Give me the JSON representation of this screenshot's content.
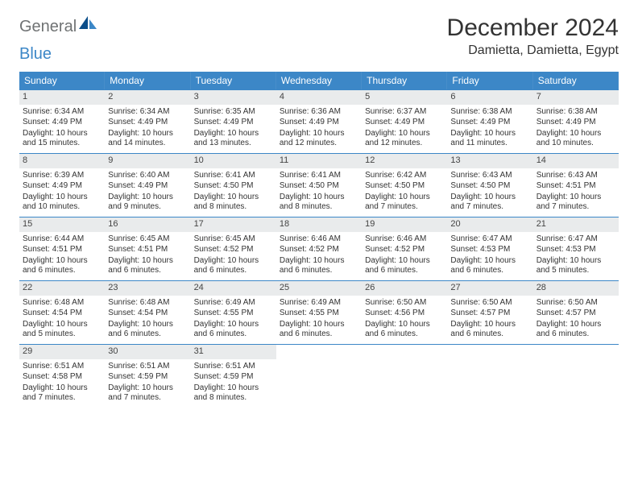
{
  "logo": {
    "part1": "General",
    "part2": "Blue"
  },
  "title": "December 2024",
  "location": "Damietta, Damietta, Egypt",
  "colors": {
    "header_bg": "#3c87c7",
    "header_text": "#ffffff",
    "daynum_bg": "#e9ebec",
    "week_border": "#3c87c7",
    "body_text": "#333333",
    "logo_gray": "#6f7273",
    "logo_blue": "#3c87c7"
  },
  "weekdays": [
    "Sunday",
    "Monday",
    "Tuesday",
    "Wednesday",
    "Thursday",
    "Friday",
    "Saturday"
  ],
  "weeks": [
    [
      {
        "n": "1",
        "sr": "Sunrise: 6:34 AM",
        "ss": "Sunset: 4:49 PM",
        "dl": "Daylight: 10 hours and 15 minutes."
      },
      {
        "n": "2",
        "sr": "Sunrise: 6:34 AM",
        "ss": "Sunset: 4:49 PM",
        "dl": "Daylight: 10 hours and 14 minutes."
      },
      {
        "n": "3",
        "sr": "Sunrise: 6:35 AM",
        "ss": "Sunset: 4:49 PM",
        "dl": "Daylight: 10 hours and 13 minutes."
      },
      {
        "n": "4",
        "sr": "Sunrise: 6:36 AM",
        "ss": "Sunset: 4:49 PM",
        "dl": "Daylight: 10 hours and 12 minutes."
      },
      {
        "n": "5",
        "sr": "Sunrise: 6:37 AM",
        "ss": "Sunset: 4:49 PM",
        "dl": "Daylight: 10 hours and 12 minutes."
      },
      {
        "n": "6",
        "sr": "Sunrise: 6:38 AM",
        "ss": "Sunset: 4:49 PM",
        "dl": "Daylight: 10 hours and 11 minutes."
      },
      {
        "n": "7",
        "sr": "Sunrise: 6:38 AM",
        "ss": "Sunset: 4:49 PM",
        "dl": "Daylight: 10 hours and 10 minutes."
      }
    ],
    [
      {
        "n": "8",
        "sr": "Sunrise: 6:39 AM",
        "ss": "Sunset: 4:49 PM",
        "dl": "Daylight: 10 hours and 10 minutes."
      },
      {
        "n": "9",
        "sr": "Sunrise: 6:40 AM",
        "ss": "Sunset: 4:49 PM",
        "dl": "Daylight: 10 hours and 9 minutes."
      },
      {
        "n": "10",
        "sr": "Sunrise: 6:41 AM",
        "ss": "Sunset: 4:50 PM",
        "dl": "Daylight: 10 hours and 8 minutes."
      },
      {
        "n": "11",
        "sr": "Sunrise: 6:41 AM",
        "ss": "Sunset: 4:50 PM",
        "dl": "Daylight: 10 hours and 8 minutes."
      },
      {
        "n": "12",
        "sr": "Sunrise: 6:42 AM",
        "ss": "Sunset: 4:50 PM",
        "dl": "Daylight: 10 hours and 7 minutes."
      },
      {
        "n": "13",
        "sr": "Sunrise: 6:43 AM",
        "ss": "Sunset: 4:50 PM",
        "dl": "Daylight: 10 hours and 7 minutes."
      },
      {
        "n": "14",
        "sr": "Sunrise: 6:43 AM",
        "ss": "Sunset: 4:51 PM",
        "dl": "Daylight: 10 hours and 7 minutes."
      }
    ],
    [
      {
        "n": "15",
        "sr": "Sunrise: 6:44 AM",
        "ss": "Sunset: 4:51 PM",
        "dl": "Daylight: 10 hours and 6 minutes."
      },
      {
        "n": "16",
        "sr": "Sunrise: 6:45 AM",
        "ss": "Sunset: 4:51 PM",
        "dl": "Daylight: 10 hours and 6 minutes."
      },
      {
        "n": "17",
        "sr": "Sunrise: 6:45 AM",
        "ss": "Sunset: 4:52 PM",
        "dl": "Daylight: 10 hours and 6 minutes."
      },
      {
        "n": "18",
        "sr": "Sunrise: 6:46 AM",
        "ss": "Sunset: 4:52 PM",
        "dl": "Daylight: 10 hours and 6 minutes."
      },
      {
        "n": "19",
        "sr": "Sunrise: 6:46 AM",
        "ss": "Sunset: 4:52 PM",
        "dl": "Daylight: 10 hours and 6 minutes."
      },
      {
        "n": "20",
        "sr": "Sunrise: 6:47 AM",
        "ss": "Sunset: 4:53 PM",
        "dl": "Daylight: 10 hours and 6 minutes."
      },
      {
        "n": "21",
        "sr": "Sunrise: 6:47 AM",
        "ss": "Sunset: 4:53 PM",
        "dl": "Daylight: 10 hours and 5 minutes."
      }
    ],
    [
      {
        "n": "22",
        "sr": "Sunrise: 6:48 AM",
        "ss": "Sunset: 4:54 PM",
        "dl": "Daylight: 10 hours and 5 minutes."
      },
      {
        "n": "23",
        "sr": "Sunrise: 6:48 AM",
        "ss": "Sunset: 4:54 PM",
        "dl": "Daylight: 10 hours and 6 minutes."
      },
      {
        "n": "24",
        "sr": "Sunrise: 6:49 AM",
        "ss": "Sunset: 4:55 PM",
        "dl": "Daylight: 10 hours and 6 minutes."
      },
      {
        "n": "25",
        "sr": "Sunrise: 6:49 AM",
        "ss": "Sunset: 4:55 PM",
        "dl": "Daylight: 10 hours and 6 minutes."
      },
      {
        "n": "26",
        "sr": "Sunrise: 6:50 AM",
        "ss": "Sunset: 4:56 PM",
        "dl": "Daylight: 10 hours and 6 minutes."
      },
      {
        "n": "27",
        "sr": "Sunrise: 6:50 AM",
        "ss": "Sunset: 4:57 PM",
        "dl": "Daylight: 10 hours and 6 minutes."
      },
      {
        "n": "28",
        "sr": "Sunrise: 6:50 AM",
        "ss": "Sunset: 4:57 PM",
        "dl": "Daylight: 10 hours and 6 minutes."
      }
    ],
    [
      {
        "n": "29",
        "sr": "Sunrise: 6:51 AM",
        "ss": "Sunset: 4:58 PM",
        "dl": "Daylight: 10 hours and 7 minutes."
      },
      {
        "n": "30",
        "sr": "Sunrise: 6:51 AM",
        "ss": "Sunset: 4:59 PM",
        "dl": "Daylight: 10 hours and 7 minutes."
      },
      {
        "n": "31",
        "sr": "Sunrise: 6:51 AM",
        "ss": "Sunset: 4:59 PM",
        "dl": "Daylight: 10 hours and 8 minutes."
      },
      null,
      null,
      null,
      null
    ]
  ]
}
